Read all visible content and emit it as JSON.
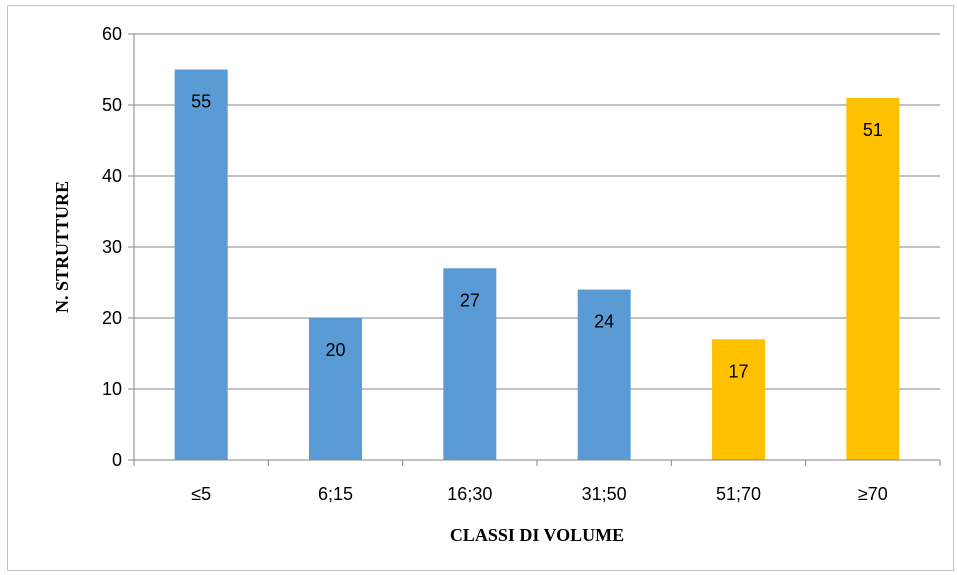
{
  "chart_data": {
    "type": "bar",
    "categories": [
      "≤5",
      "6;15",
      "16;30",
      "31;50",
      "51;70",
      "≥70"
    ],
    "values": [
      55,
      20,
      27,
      24,
      17,
      51
    ],
    "bar_colors": [
      "#5b9bd5",
      "#5b9bd5",
      "#5b9bd5",
      "#5b9bd5",
      "#ffc000",
      "#ffc000"
    ],
    "xlabel": "CLASSI DI VOLUME",
    "ylabel": "N. STRUTTURE",
    "ylim": [
      0,
      60
    ],
    "yticks": [
      0,
      10,
      20,
      30,
      40,
      50,
      60
    ],
    "grid": true,
    "data_labels": true,
    "legend": "none"
  }
}
